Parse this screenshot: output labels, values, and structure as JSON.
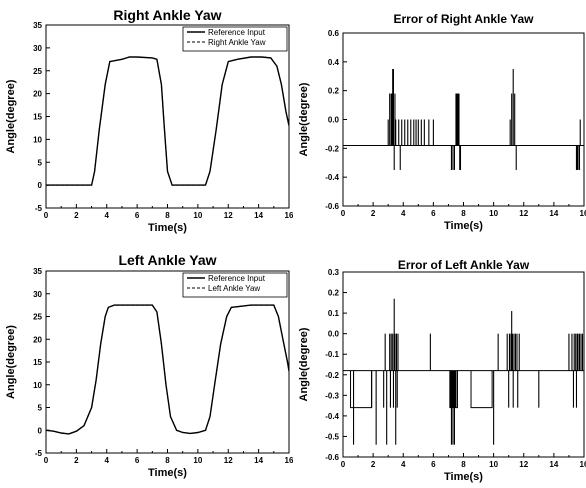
{
  "chart_data": [
    {
      "type": "line",
      "title": "Right Ankle Yaw",
      "xlabel": "Time(s)",
      "ylabel": "Angle(degree)",
      "xlim": [
        0,
        16
      ],
      "ylim": [
        -5,
        35
      ],
      "xticks": [
        0,
        2,
        4,
        6,
        8,
        10,
        12,
        14,
        16
      ],
      "yticks": [
        -5,
        0,
        5,
        10,
        15,
        20,
        25,
        30,
        35
      ],
      "legend": {
        "placement": "top-right",
        "entries": [
          "Reference Input",
          "Right Ankle Yaw"
        ]
      },
      "series": [
        {
          "name": "Reference Input",
          "style": "solid",
          "x": [
            0,
            3.0,
            3.2,
            3.5,
            3.9,
            4.2,
            5.0,
            5.5,
            6.0,
            7.0,
            7.3,
            7.6,
            7.8,
            8.0,
            8.3,
            10.5,
            10.8,
            11.2,
            11.6,
            12.0,
            12.6,
            13.5,
            14.2,
            14.8,
            15.2,
            15.5,
            15.8,
            16.0
          ],
          "y": [
            0,
            0,
            3,
            12,
            22,
            27,
            27.5,
            28,
            28,
            27.8,
            27.5,
            22,
            12,
            3,
            0,
            0,
            3,
            12,
            22,
            27,
            27.5,
            28,
            28,
            27.8,
            26,
            22,
            16,
            13
          ]
        },
        {
          "name": "Right Ankle Yaw",
          "style": "dashed",
          "x": [
            0,
            3.0,
            3.2,
            3.5,
            3.9,
            4.2,
            5.0,
            5.5,
            6.0,
            7.0,
            7.3,
            7.6,
            7.8,
            8.0,
            8.3,
            10.5,
            10.8,
            11.2,
            11.6,
            12.0,
            12.6,
            13.5,
            14.2,
            14.8,
            15.2,
            15.5,
            15.8,
            16.0
          ],
          "y": [
            0,
            0,
            3,
            12,
            22,
            27,
            27.5,
            28,
            28,
            27.8,
            27.5,
            22,
            12,
            3,
            0,
            0,
            3,
            12,
            22,
            27,
            27.5,
            28,
            28,
            27.8,
            26,
            22,
            16,
            13
          ]
        }
      ]
    },
    {
      "type": "line",
      "title": "Error of Right Ankle Yaw",
      "xlabel": "Time(s)",
      "ylabel": "Angle(degree)",
      "xlim": [
        0,
        16
      ],
      "ylim": [
        -0.6,
        0.6
      ],
      "xticks": [
        0,
        2,
        4,
        6,
        8,
        10,
        12,
        14,
        16
      ],
      "yticks": [
        -0.6,
        -0.4,
        -0.2,
        0.0,
        0.2,
        0.4,
        0.6
      ],
      "baseline": -0.18,
      "spikes": [
        [
          3.0,
          0.0
        ],
        [
          3.1,
          0.18
        ],
        [
          3.2,
          0.18
        ],
        [
          3.25,
          0.18
        ],
        [
          3.3,
          0.35
        ],
        [
          3.35,
          0.35
        ],
        [
          3.4,
          -0.35
        ],
        [
          3.45,
          0.18
        ],
        [
          3.5,
          0.0
        ],
        [
          3.7,
          0.0
        ],
        [
          3.8,
          -0.35
        ],
        [
          3.9,
          0.0
        ],
        [
          4.1,
          0.0
        ],
        [
          4.3,
          0.0
        ],
        [
          4.5,
          0.0
        ],
        [
          4.7,
          0.0
        ],
        [
          4.85,
          0.0
        ],
        [
          5.0,
          0.0
        ],
        [
          5.2,
          0.0
        ],
        [
          5.4,
          0.0
        ],
        [
          5.7,
          0.0
        ],
        [
          6.0,
          0.0
        ],
        [
          7.2,
          -0.35
        ],
        [
          7.3,
          -0.35
        ],
        [
          7.4,
          -0.35
        ],
        [
          7.5,
          0.18
        ],
        [
          7.55,
          0.18
        ],
        [
          7.6,
          0.18
        ],
        [
          7.65,
          0.18
        ],
        [
          7.7,
          0.18
        ],
        [
          7.75,
          -0.35
        ],
        [
          7.8,
          -0.35
        ],
        [
          11.1,
          0.0
        ],
        [
          11.2,
          0.18
        ],
        [
          11.3,
          0.35
        ],
        [
          11.4,
          0.18
        ],
        [
          11.5,
          -0.35
        ],
        [
          15.5,
          -0.35
        ],
        [
          15.55,
          -0.35
        ],
        [
          15.6,
          -0.35
        ],
        [
          15.7,
          -0.35
        ],
        [
          15.75,
          0.0
        ]
      ]
    },
    {
      "type": "line",
      "title": "Left Ankle Yaw",
      "xlabel": "Time(s)",
      "ylabel": "Angle(degree)",
      "xlim": [
        0,
        16
      ],
      "ylim": [
        -5,
        35
      ],
      "xticks": [
        0,
        2,
        4,
        6,
        8,
        10,
        12,
        14,
        16
      ],
      "yticks": [
        -5,
        0,
        5,
        10,
        15,
        20,
        25,
        30,
        35
      ],
      "legend": {
        "placement": "top-right",
        "entries": [
          "Reference Input",
          "Left Ankle Yaw"
        ]
      },
      "series": [
        {
          "name": "Reference Input",
          "style": "solid",
          "x": [
            0,
            0.5,
            1.0,
            1.5,
            2.0,
            2.5,
            3.0,
            3.3,
            3.6,
            3.9,
            4.1,
            4.5,
            6.0,
            7.0,
            7.3,
            7.6,
            7.9,
            8.2,
            8.6,
            9.0,
            9.5,
            10.0,
            10.5,
            10.8,
            11.1,
            11.5,
            11.9,
            12.2,
            13.5,
            15.0,
            15.3,
            15.6,
            15.9,
            16.0
          ],
          "y": [
            0,
            -0.2,
            -0.6,
            -0.8,
            -0.2,
            1,
            5,
            11,
            19,
            25,
            27,
            27.5,
            27.5,
            27.5,
            26,
            19,
            10,
            3,
            0,
            -0.5,
            -0.7,
            -0.5,
            0,
            3,
            10,
            19,
            25,
            27,
            27.5,
            27.5,
            25,
            20,
            15,
            13
          ]
        },
        {
          "name": "Left Ankle Yaw",
          "style": "dashed",
          "x": [
            0,
            0.5,
            1.0,
            1.5,
            2.0,
            2.5,
            3.0,
            3.3,
            3.6,
            3.9,
            4.1,
            4.5,
            6.0,
            7.0,
            7.3,
            7.6,
            7.9,
            8.2,
            8.6,
            9.0,
            9.5,
            10.0,
            10.5,
            10.8,
            11.1,
            11.5,
            11.9,
            12.2,
            13.5,
            15.0,
            15.3,
            15.6,
            15.9,
            16.0
          ],
          "y": [
            0,
            -0.2,
            -0.6,
            -0.8,
            -0.2,
            1,
            5,
            11,
            19,
            25,
            27,
            27.5,
            27.5,
            27.5,
            26,
            19,
            10,
            3,
            0,
            -0.5,
            -0.7,
            -0.5,
            0,
            3,
            10,
            19,
            25,
            27,
            27.5,
            27.5,
            25,
            20,
            15,
            13
          ]
        }
      ]
    },
    {
      "type": "line",
      "title": "Error of Left Ankle Yaw",
      "xlabel": "Time(s)",
      "ylabel": "Angle(degree)",
      "xlim": [
        0,
        16
      ],
      "ylim": [
        -0.6,
        0.3
      ],
      "xticks": [
        0,
        2,
        4,
        6,
        8,
        10,
        12,
        14,
        16
      ],
      "yticks": [
        -0.6,
        -0.5,
        -0.4,
        -0.3,
        -0.2,
        -0.1,
        0.0,
        0.1,
        0.2,
        0.3
      ],
      "baseline": -0.18,
      "low_segments": [
        [
          0.5,
          1.9
        ],
        [
          7.1,
          7.6
        ],
        [
          8.5,
          9.9
        ]
      ],
      "low_level": -0.36,
      "spikes": [
        [
          0.7,
          -0.54
        ],
        [
          1.2,
          -0.18
        ],
        [
          1.9,
          -0.36
        ],
        [
          2.0,
          -0.18
        ],
        [
          2.2,
          -0.54
        ],
        [
          2.3,
          -0.18
        ],
        [
          2.7,
          -0.36
        ],
        [
          2.8,
          0.0
        ],
        [
          2.9,
          -0.54
        ],
        [
          3.0,
          -0.18
        ],
        [
          3.1,
          0.0
        ],
        [
          3.15,
          -0.36
        ],
        [
          3.2,
          0.0
        ],
        [
          3.25,
          -0.18
        ],
        [
          3.3,
          0.0
        ],
        [
          3.35,
          -0.36
        ],
        [
          3.4,
          0.17
        ],
        [
          3.45,
          0.0
        ],
        [
          3.5,
          -0.54
        ],
        [
          3.55,
          0.0
        ],
        [
          3.6,
          -0.36
        ],
        [
          3.65,
          0.0
        ],
        [
          3.7,
          -0.18
        ],
        [
          5.8,
          0.0
        ],
        [
          6.0,
          -0.18
        ],
        [
          7.1,
          -0.36
        ],
        [
          7.15,
          -0.36
        ],
        [
          7.2,
          -0.54
        ],
        [
          7.25,
          -0.36
        ],
        [
          7.3,
          -0.54
        ],
        [
          7.35,
          -0.36
        ],
        [
          7.4,
          -0.54
        ],
        [
          7.45,
          -0.36
        ],
        [
          7.5,
          -0.36
        ],
        [
          9.9,
          -0.18
        ],
        [
          10.0,
          -0.54
        ],
        [
          10.1,
          -0.18
        ],
        [
          10.3,
          0.0
        ],
        [
          10.8,
          -0.18
        ],
        [
          10.9,
          0.0
        ],
        [
          11.0,
          -0.36
        ],
        [
          11.05,
          0.0
        ],
        [
          11.1,
          -0.18
        ],
        [
          11.15,
          0.0
        ],
        [
          11.2,
          0.11
        ],
        [
          11.25,
          0.0
        ],
        [
          11.3,
          -0.36
        ],
        [
          11.35,
          0.0
        ],
        [
          11.4,
          -0.18
        ],
        [
          11.45,
          0.0
        ],
        [
          11.5,
          -0.18
        ],
        [
          11.55,
          0.0
        ],
        [
          11.6,
          -0.36
        ],
        [
          11.7,
          0.0
        ],
        [
          11.8,
          -0.18
        ],
        [
          13.0,
          -0.36
        ],
        [
          15.0,
          0.0
        ],
        [
          15.1,
          -0.18
        ],
        [
          15.2,
          0.0
        ],
        [
          15.3,
          -0.36
        ],
        [
          15.35,
          0.0
        ],
        [
          15.4,
          -0.18
        ],
        [
          15.45,
          0.0
        ],
        [
          15.5,
          -0.36
        ],
        [
          15.55,
          0.0
        ],
        [
          15.6,
          0.0
        ],
        [
          15.65,
          -0.18
        ],
        [
          15.7,
          0.0
        ],
        [
          15.8,
          0.0
        ],
        [
          15.85,
          -0.18
        ],
        [
          15.9,
          0.0
        ]
      ]
    }
  ]
}
